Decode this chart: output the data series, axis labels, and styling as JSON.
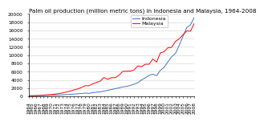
{
  "title": "Palm oil production (million metric tons) in Indonesia and Malaysia, 1964-2008",
  "years": [
    1964,
    1965,
    1966,
    1967,
    1968,
    1969,
    1970,
    1971,
    1972,
    1973,
    1974,
    1975,
    1976,
    1977,
    1978,
    1979,
    1980,
    1981,
    1982,
    1983,
    1984,
    1985,
    1986,
    1987,
    1988,
    1989,
    1990,
    1991,
    1992,
    1993,
    1994,
    1995,
    1996,
    1997,
    1998,
    1999,
    2000,
    2001,
    2002,
    2003,
    2004,
    2005,
    2006,
    2007,
    2008
  ],
  "indonesia": [
    157,
    168,
    178,
    189,
    200,
    217,
    237,
    267,
    310,
    369,
    437,
    491,
    554,
    622,
    700,
    789,
    721,
    907,
    1000,
    1100,
    1260,
    1480,
    1660,
    1870,
    2051,
    2290,
    2413,
    2659,
    2950,
    3303,
    4017,
    4480,
    5124,
    5385,
    5033,
    6340,
    7050,
    8396,
    9622,
    10440,
    12380,
    14560,
    16700,
    17370,
    19200
  ],
  "malaysia": [
    90,
    120,
    175,
    230,
    300,
    390,
    430,
    536,
    668,
    831,
    1062,
    1259,
    1551,
    1798,
    2147,
    2568,
    2575,
    3032,
    3378,
    3697,
    4571,
    4133,
    4548,
    4534,
    5120,
    6078,
    6094,
    6138,
    6396,
    7403,
    7205,
    7811,
    7810,
    9074,
    8320,
    10554,
    10842,
    11804,
    11909,
    13350,
    13976,
    14962,
    15882,
    15824,
    17734
  ],
  "indonesia_color": "#4472c4",
  "malaysia_color": "#ff0000",
  "ylim": [
    0,
    20000
  ],
  "yticks": [
    0,
    2000,
    4000,
    6000,
    8000,
    10000,
    12000,
    14000,
    16000,
    18000,
    20000
  ],
  "background_color": "#ffffff",
  "title_fontsize": 5.2,
  "tick_fontsize": 4.2,
  "legend_fontsize": 4.5
}
